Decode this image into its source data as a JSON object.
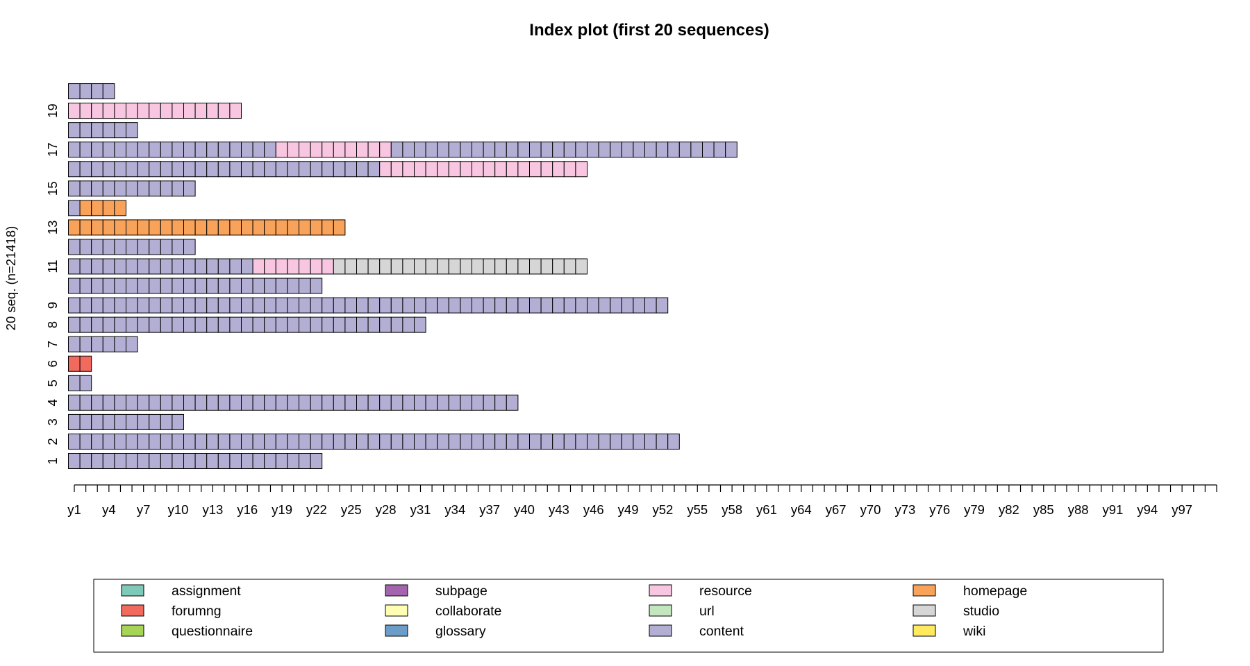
{
  "chart_data": {
    "type": "index-plot",
    "title": "Index plot (first 20 sequences)",
    "ylabel": "20 seq. (n=21418)",
    "xlabel": "",
    "x_positions": 100,
    "x_tick_labels": [
      "y1",
      "y4",
      "y7",
      "y10",
      "y13",
      "y16",
      "y19",
      "y22",
      "y25",
      "y28",
      "y31",
      "y34",
      "y37",
      "y40",
      "y43",
      "y46",
      "y49",
      "y52",
      "y55",
      "y58",
      "y61",
      "y64",
      "y67",
      "y70",
      "y73",
      "y76",
      "y79",
      "y82",
      "y85",
      "y88",
      "y91",
      "y94",
      "y97"
    ],
    "y_tick_labels": [
      "1",
      "2",
      "3",
      "4",
      "5",
      "6",
      "7",
      "8",
      "9",
      "11",
      "13",
      "15",
      "17",
      "19"
    ],
    "y_tick_sequences": [
      1,
      2,
      3,
      4,
      5,
      6,
      7,
      8,
      9,
      11,
      13,
      15,
      17,
      19
    ],
    "states": [
      {
        "name": "assignment",
        "color": "#7FC9B8"
      },
      {
        "name": "collaborate",
        "color": "#FFFFB3"
      },
      {
        "name": "content",
        "color": "#B3AED4"
      },
      {
        "name": "forumng",
        "color": "#F26A5E"
      },
      {
        "name": "glossary",
        "color": "#6B9DC8"
      },
      {
        "name": "homepage",
        "color": "#F9A35A"
      },
      {
        "name": "questionnaire",
        "color": "#A6D454"
      },
      {
        "name": "resource",
        "color": "#F8C6E0"
      },
      {
        "name": "studio",
        "color": "#D6D6D6"
      },
      {
        "name": "subpage",
        "color": "#A564AE"
      },
      {
        "name": "url",
        "color": "#C3E6BE"
      },
      {
        "name": "wiki",
        "color": "#FFE95C"
      }
    ],
    "legend_order": [
      "assignment",
      "forumng",
      "questionnaire",
      "subpage",
      "collaborate",
      "glossary",
      "resource",
      "url",
      "content",
      "homepage",
      "studio",
      "wiki"
    ],
    "legend_position": "bottom",
    "sequences": [
      {
        "id": 1,
        "segments": [
          {
            "state": "content",
            "length": 22
          }
        ]
      },
      {
        "id": 2,
        "segments": [
          {
            "state": "content",
            "length": 53
          }
        ]
      },
      {
        "id": 3,
        "segments": [
          {
            "state": "content",
            "length": 10
          }
        ]
      },
      {
        "id": 4,
        "segments": [
          {
            "state": "content",
            "length": 39
          }
        ]
      },
      {
        "id": 5,
        "segments": [
          {
            "state": "content",
            "length": 2
          }
        ]
      },
      {
        "id": 6,
        "segments": [
          {
            "state": "forumng",
            "length": 2
          }
        ]
      },
      {
        "id": 7,
        "segments": [
          {
            "state": "content",
            "length": 6
          }
        ]
      },
      {
        "id": 8,
        "segments": [
          {
            "state": "content",
            "length": 31
          }
        ]
      },
      {
        "id": 9,
        "segments": [
          {
            "state": "content",
            "length": 52
          }
        ]
      },
      {
        "id": 10,
        "segments": [
          {
            "state": "content",
            "length": 22
          }
        ]
      },
      {
        "id": 11,
        "segments": [
          {
            "state": "content",
            "length": 16
          },
          {
            "state": "resource",
            "length": 7
          },
          {
            "state": "studio",
            "length": 22
          }
        ]
      },
      {
        "id": 12,
        "segments": [
          {
            "state": "content",
            "length": 11
          }
        ]
      },
      {
        "id": 13,
        "segments": [
          {
            "state": "homepage",
            "length": 24
          }
        ]
      },
      {
        "id": 14,
        "segments": [
          {
            "state": "content",
            "length": 1
          },
          {
            "state": "homepage",
            "length": 4
          }
        ]
      },
      {
        "id": 15,
        "segments": [
          {
            "state": "content",
            "length": 11
          }
        ]
      },
      {
        "id": 16,
        "segments": [
          {
            "state": "content",
            "length": 27
          },
          {
            "state": "resource",
            "length": 18
          }
        ]
      },
      {
        "id": 17,
        "segments": [
          {
            "state": "content",
            "length": 18
          },
          {
            "state": "resource",
            "length": 10
          },
          {
            "state": "content",
            "length": 30
          }
        ]
      },
      {
        "id": 18,
        "segments": [
          {
            "state": "content",
            "length": 6
          }
        ]
      },
      {
        "id": 19,
        "segments": [
          {
            "state": "resource",
            "length": 15
          }
        ]
      },
      {
        "id": 20,
        "segments": [
          {
            "state": "content",
            "length": 4
          }
        ]
      }
    ]
  }
}
